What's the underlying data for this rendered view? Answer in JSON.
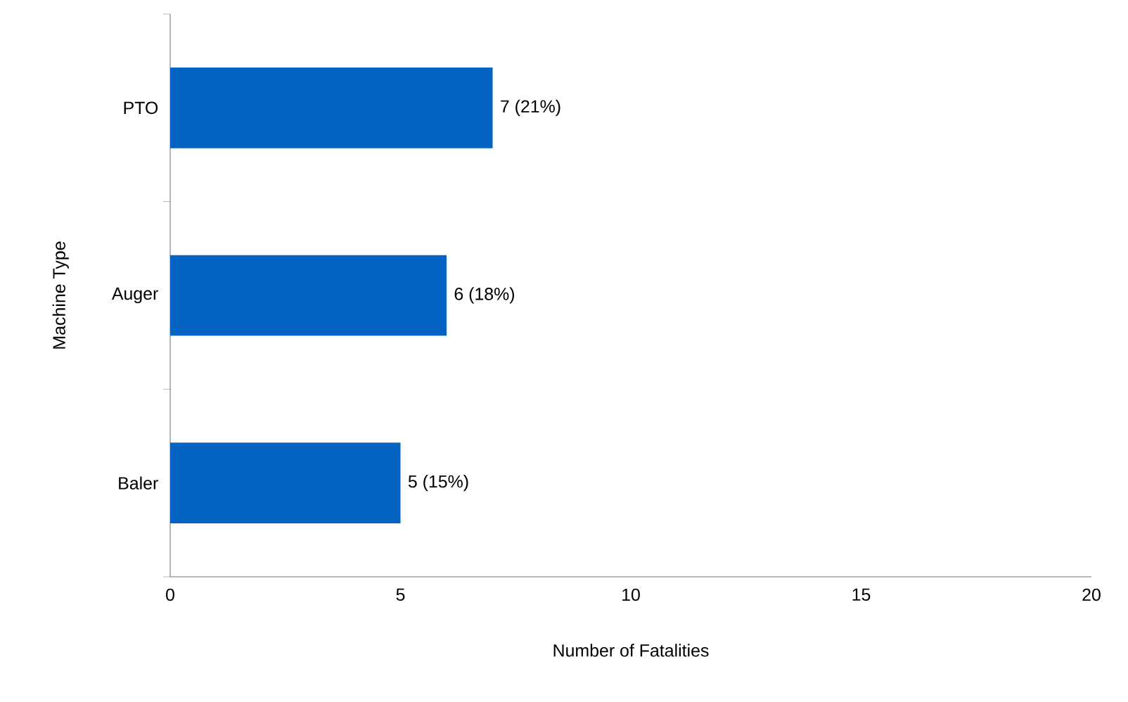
{
  "chart_data": {
    "type": "bar",
    "orientation": "horizontal",
    "xlabel": "Number of Fatalities",
    "ylabel": "Machine Type",
    "categories": [
      "PTO",
      "Auger",
      "Baler"
    ],
    "values": [
      7,
      6,
      5
    ],
    "value_labels": [
      "7 (21%)",
      "6 (18%)",
      "5 (15%)"
    ],
    "color": "#0563c1",
    "xlim": [
      0,
      20
    ],
    "xticks": [
      0,
      5,
      10,
      15,
      20
    ],
    "grid": false
  }
}
